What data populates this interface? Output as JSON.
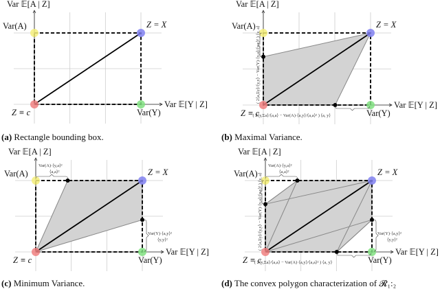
{
  "colors": {
    "origin": "#f08080",
    "var_a": "#f5ef7a",
    "var_x": "#8080f0",
    "var_y": "#80e080",
    "region": "#d3d3d3",
    "grid": "#cccccc"
  },
  "axis_labels": {
    "y_axis": "Var 𝔼[A | Z]",
    "x_axis": "Var 𝔼[Y | Z]",
    "var_a": "Var(A)",
    "var_y": "Var(Y)",
    "z_x": "Z = X",
    "z_c": "Z ≡ c"
  },
  "formulas": {
    "top_offset_num": "Var(A)·⟨y,a⟩²",
    "top_offset_den": "⟨a,a⟩²",
    "right_offset_num": "Var(Y)·⟨a,y⟩²",
    "right_offset_den": "⟨y,y⟩²",
    "bottom_offset": "( 2⟨y,Σa⟩/⟨a,a⟩ − Var(A)·⟨a,y⟩/⟨a,a⟩² ) ⟨a, y⟩",
    "left_offset": "( 2⟨a,Σy⟩/⟨y,y⟩ − Var(Y)·⟨y,a⟩/⟨y,y⟩² ) ⟨y, a⟩"
  },
  "panels": [
    {
      "id": "a",
      "caption_tag": "(a)",
      "caption": " Rectangle bounding box."
    },
    {
      "id": "b",
      "caption_tag": "(b)",
      "caption": " Maximal Variance."
    },
    {
      "id": "c",
      "caption_tag": "(c)",
      "caption": " Minimum Variance."
    },
    {
      "id": "d",
      "caption_tag": "(d)",
      "caption": " The convex polygon characterization of 𝓡₁:₂"
    }
  ]
}
